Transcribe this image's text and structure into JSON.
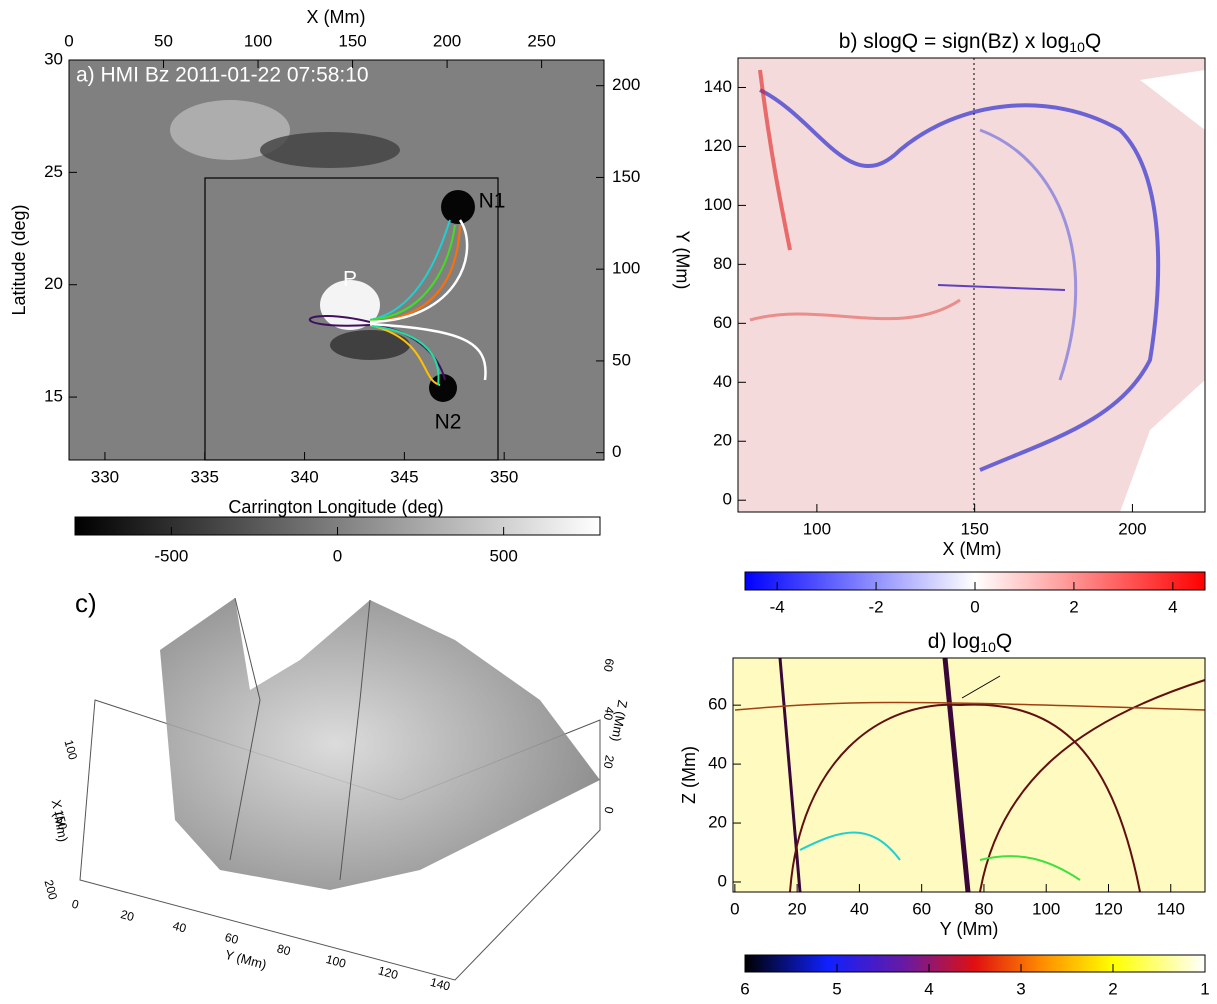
{
  "panels": {
    "a": {
      "title": "a) HMI Bz  2011-01-22 07:58:10",
      "xlabel": "Carrington Longitude (deg)",
      "ylabel": "Latitude (deg)",
      "x2label": "X (Mm)",
      "y2label": "Y (Mm)",
      "xlim": [
        328.2,
        355
      ],
      "xticks": [
        330,
        335,
        340,
        345,
        350
      ],
      "ylim": [
        12.2,
        30
      ],
      "yticks": [
        15,
        20,
        25,
        30
      ],
      "x2lim": [
        0,
        283
      ],
      "x2ticks": [
        0,
        50,
        100,
        150,
        200,
        250
      ],
      "y2lim": [
        -4,
        214
      ],
      "y2ticks": [
        0,
        50,
        100,
        150,
        200
      ],
      "annotations": [
        "P",
        "N1",
        "N2"
      ],
      "colorbar": {
        "lim": [
          -790,
          790
        ],
        "ticks": [
          -500,
          0,
          500
        ]
      }
    },
    "b": {
      "title": [
        "b) slogQ = sign(Bz) x log",
        "10",
        "Q"
      ],
      "xlabel": "X (Mm)",
      "xlim": [
        75,
        223
      ],
      "xticks": [
        100,
        150,
        200
      ],
      "ylim": [
        -4,
        150
      ],
      "yticks": [
        0,
        20,
        40,
        60,
        80,
        100,
        120,
        140
      ],
      "colorbar": {
        "lim": [
          -4.65,
          4.65
        ],
        "ticks": [
          -4,
          -2,
          0,
          2,
          4
        ]
      }
    },
    "c": {
      "label": "c)",
      "xlabel": "X (Mm)",
      "ylabel": "Y (Mm)",
      "zlabel": "Z (Mm)",
      "xticks": [
        100,
        150,
        200
      ],
      "yticks": [
        0,
        20,
        40,
        60,
        80,
        100,
        120,
        140
      ],
      "zticks": [
        0,
        20,
        40,
        60
      ]
    },
    "d": {
      "title": [
        "d) log",
        "10",
        "Q"
      ],
      "xlabel": "Y (Mm)",
      "ylabel": "Z (Mm)",
      "xlim": [
        -0.6,
        151
      ],
      "xticks": [
        0,
        20,
        40,
        60,
        80,
        100,
        120,
        140
      ],
      "ylim": [
        -3.4,
        76
      ],
      "yticks": [
        0,
        20,
        40,
        60
      ],
      "colorbar": {
        "lim": [
          6,
          1
        ],
        "ticks": [
          6,
          5,
          4,
          3,
          2,
          1
        ]
      }
    }
  }
}
